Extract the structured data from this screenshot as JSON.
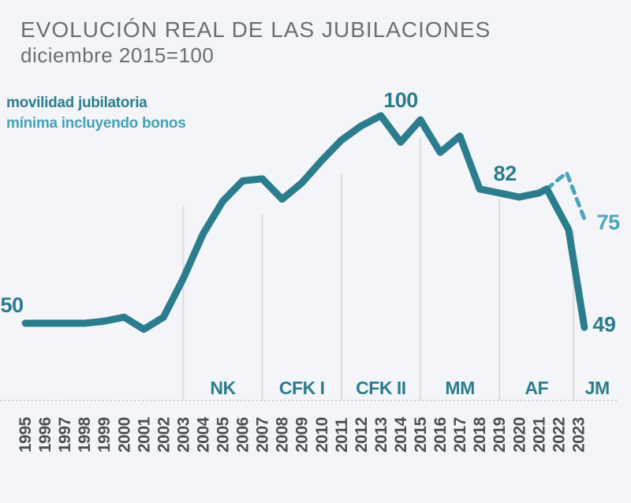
{
  "title": {
    "heading": "EVOLUCIÓN REAL DE LAS JUBILACIONES",
    "subtitle": "diciembre 2015=100"
  },
  "legend": [
    {
      "label": "movilidad jubilatoria",
      "color": "#2b7d8d"
    },
    {
      "label": "mínima incluyendo bonos",
      "color": "#45a3b8"
    }
  ],
  "colors": {
    "accent_dark_teal": "#2b7d8d",
    "accent_light_teal": "#4aa6ba",
    "title_gray": "#687077",
    "year_label_gray": "#4b4e52",
    "gridline_gray": "#dcdcdc",
    "background": "#f4f5f8"
  },
  "chart_data": {
    "type": "line",
    "title": "EVOLUCIÓN REAL DE LAS JUBILACIONES",
    "subtitle": "diciembre 2015=100",
    "xlabel": "",
    "ylabel": "",
    "ylim": [
      45,
      105
    ],
    "grid": "vertical-period-dividers-only",
    "legend_position": "top-left",
    "x": [
      "1995",
      "1996",
      "1997",
      "1998",
      "1999",
      "2000",
      "2001",
      "2002",
      "2003",
      "2004",
      "2005",
      "2006",
      "2007",
      "2008",
      "2009",
      "2010",
      "2011",
      "2012",
      "2013",
      "2014",
      "2015",
      "2016",
      "2017",
      "2018",
      "2019",
      "2020",
      "2021",
      "2022",
      "2023"
    ],
    "series": [
      {
        "name": "movilidad jubilatoria",
        "style": "solid",
        "color": "#2b7d8d",
        "points": [
          [
            1995,
            50
          ],
          [
            1996,
            50
          ],
          [
            1997,
            50
          ],
          [
            1998,
            50
          ],
          [
            1999,
            50.5
          ],
          [
            2000,
            51.5
          ],
          [
            2001,
            48.5
          ],
          [
            2002,
            51.5
          ],
          [
            2003,
            61
          ],
          [
            2004,
            72
          ],
          [
            2005,
            80
          ],
          [
            2006,
            85
          ],
          [
            2007,
            85.5
          ],
          [
            2008,
            80.5
          ],
          [
            2009,
            84.5
          ],
          [
            2010,
            90
          ],
          [
            2011,
            95
          ],
          [
            2012,
            98.5
          ],
          [
            2013,
            101
          ],
          [
            2014,
            94.5
          ],
          [
            2015,
            100
          ],
          [
            2016,
            92
          ],
          [
            2017,
            96
          ],
          [
            2018,
            83
          ],
          [
            2019,
            82
          ],
          [
            2020,
            81
          ],
          [
            2021,
            82
          ],
          [
            2021.4,
            83
          ],
          [
            2022.5,
            73
          ],
          [
            2023.3,
            49
          ]
        ]
      },
      {
        "name": "mínima incluyendo bonos",
        "style": "dashed",
        "color": "#4aa6ba",
        "points": [
          [
            2021.4,
            83
          ],
          [
            2022.4,
            87
          ],
          [
            2023.35,
            75
          ]
        ]
      }
    ],
    "annotations": [
      {
        "text": "50",
        "year": 1995,
        "value": 50,
        "color": "dark"
      },
      {
        "text": "100",
        "year": 2015,
        "value": 100,
        "color": "dark"
      },
      {
        "text": "82",
        "year": 2019,
        "value": 82,
        "color": "dark"
      },
      {
        "text": "49",
        "year": 2023.3,
        "value": 49,
        "color": "dark"
      },
      {
        "text": "75",
        "year": 2023.35,
        "value": 75,
        "color": "light"
      }
    ],
    "periods": {
      "labels": [
        "NK",
        "CFK I",
        "CFK II",
        "MM",
        "AF",
        "JM"
      ],
      "divider_years": [
        2003,
        2007,
        2011,
        2015,
        2019,
        2022.75
      ]
    }
  }
}
